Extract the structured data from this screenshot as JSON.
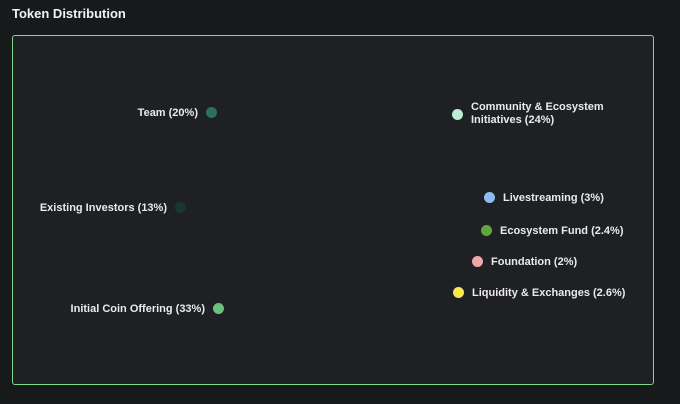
{
  "page": {
    "title": "Token Distribution"
  },
  "chart_data": {
    "type": "pie",
    "title": "Token Distribution",
    "slices": [
      {
        "label": "Community & Ecosystem Initiatives (24%)",
        "label_line1": "Community & Ecosystem",
        "label_line2": "Initiatives (24%)",
        "value": 24,
        "color": "#bdeed3"
      },
      {
        "label": "Livestreaming (3%)",
        "value": 3,
        "color": "#8fbcf0"
      },
      {
        "label": "Ecosystem Fund (2.4%)",
        "value": 2.4,
        "color": "#5fa63e"
      },
      {
        "label": "Foundation (2%)",
        "value": 2,
        "color": "#f1a7a8"
      },
      {
        "label": "Liquidity & Exchanges (2.6%)",
        "value": 2.6,
        "color": "#f6e94c"
      },
      {
        "label": "Initial Coin Offering (33%)",
        "value": 33,
        "color": "#6dbe7f"
      },
      {
        "label": "Existing Investors (13%)",
        "value": 13,
        "color": "#17392d"
      },
      {
        "label": "Team (20%)",
        "value": 20,
        "color": "#2f6f5e"
      }
    ]
  }
}
